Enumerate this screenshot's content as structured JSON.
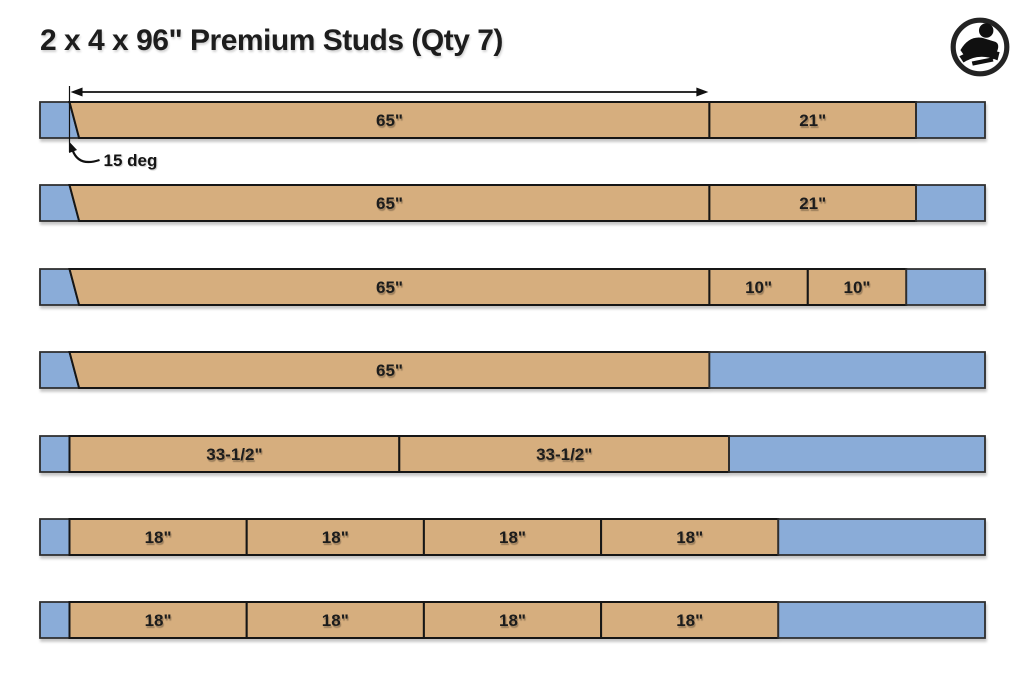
{
  "title": "2 x 4 x 96\" Premium Studs (Qty 7)",
  "logo": {
    "icon": "woodworker-emblem"
  },
  "colors": {
    "cut_fill": "#d6ae7e",
    "waste_fill": "#8aacd8",
    "cut_stroke": "#161616",
    "waste_stroke": "#2d2d2d",
    "annotation": "#111111"
  },
  "stud_length_in": 96,
  "bars": [
    {
      "id": "stud-1",
      "angled_left_cut": true,
      "show_dimension_arrow": true,
      "angle_label": "15 deg",
      "segments": [
        {
          "type": "waste",
          "inches": 3,
          "label": ""
        },
        {
          "type": "cut",
          "inches": 65,
          "label": "65\""
        },
        {
          "type": "cut",
          "inches": 21,
          "label": "21\""
        },
        {
          "type": "waste",
          "inches": 7,
          "label": ""
        }
      ]
    },
    {
      "id": "stud-2",
      "angled_left_cut": true,
      "segments": [
        {
          "type": "waste",
          "inches": 3,
          "label": ""
        },
        {
          "type": "cut",
          "inches": 65,
          "label": "65\""
        },
        {
          "type": "cut",
          "inches": 21,
          "label": "21\""
        },
        {
          "type": "waste",
          "inches": 7,
          "label": ""
        }
      ]
    },
    {
      "id": "stud-3",
      "angled_left_cut": true,
      "segments": [
        {
          "type": "waste",
          "inches": 3,
          "label": ""
        },
        {
          "type": "cut",
          "inches": 65,
          "label": "65\""
        },
        {
          "type": "cut",
          "inches": 10,
          "label": "10\""
        },
        {
          "type": "cut",
          "inches": 10,
          "label": "10\""
        },
        {
          "type": "waste",
          "inches": 8,
          "label": ""
        }
      ]
    },
    {
      "id": "stud-4",
      "angled_left_cut": true,
      "segments": [
        {
          "type": "waste",
          "inches": 3,
          "label": ""
        },
        {
          "type": "cut",
          "inches": 65,
          "label": "65\""
        },
        {
          "type": "waste",
          "inches": 28,
          "label": ""
        }
      ]
    },
    {
      "id": "stud-5",
      "angled_left_cut": false,
      "segments": [
        {
          "type": "waste",
          "inches": 3,
          "label": ""
        },
        {
          "type": "cut",
          "inches": 33.5,
          "label": "33-1/2\""
        },
        {
          "type": "cut",
          "inches": 33.5,
          "label": "33-1/2\""
        },
        {
          "type": "waste",
          "inches": 26,
          "label": ""
        }
      ]
    },
    {
      "id": "stud-6",
      "angled_left_cut": false,
      "segments": [
        {
          "type": "waste",
          "inches": 3,
          "label": ""
        },
        {
          "type": "cut",
          "inches": 18,
          "label": "18\""
        },
        {
          "type": "cut",
          "inches": 18,
          "label": "18\""
        },
        {
          "type": "cut",
          "inches": 18,
          "label": "18\""
        },
        {
          "type": "cut",
          "inches": 18,
          "label": "18\""
        },
        {
          "type": "waste",
          "inches": 21,
          "label": ""
        }
      ]
    },
    {
      "id": "stud-7",
      "angled_left_cut": false,
      "segments": [
        {
          "type": "waste",
          "inches": 3,
          "label": ""
        },
        {
          "type": "cut",
          "inches": 18,
          "label": "18\""
        },
        {
          "type": "cut",
          "inches": 18,
          "label": "18\""
        },
        {
          "type": "cut",
          "inches": 18,
          "label": "18\""
        },
        {
          "type": "cut",
          "inches": 18,
          "label": "18\""
        },
        {
          "type": "waste",
          "inches": 21,
          "label": ""
        }
      ]
    }
  ]
}
